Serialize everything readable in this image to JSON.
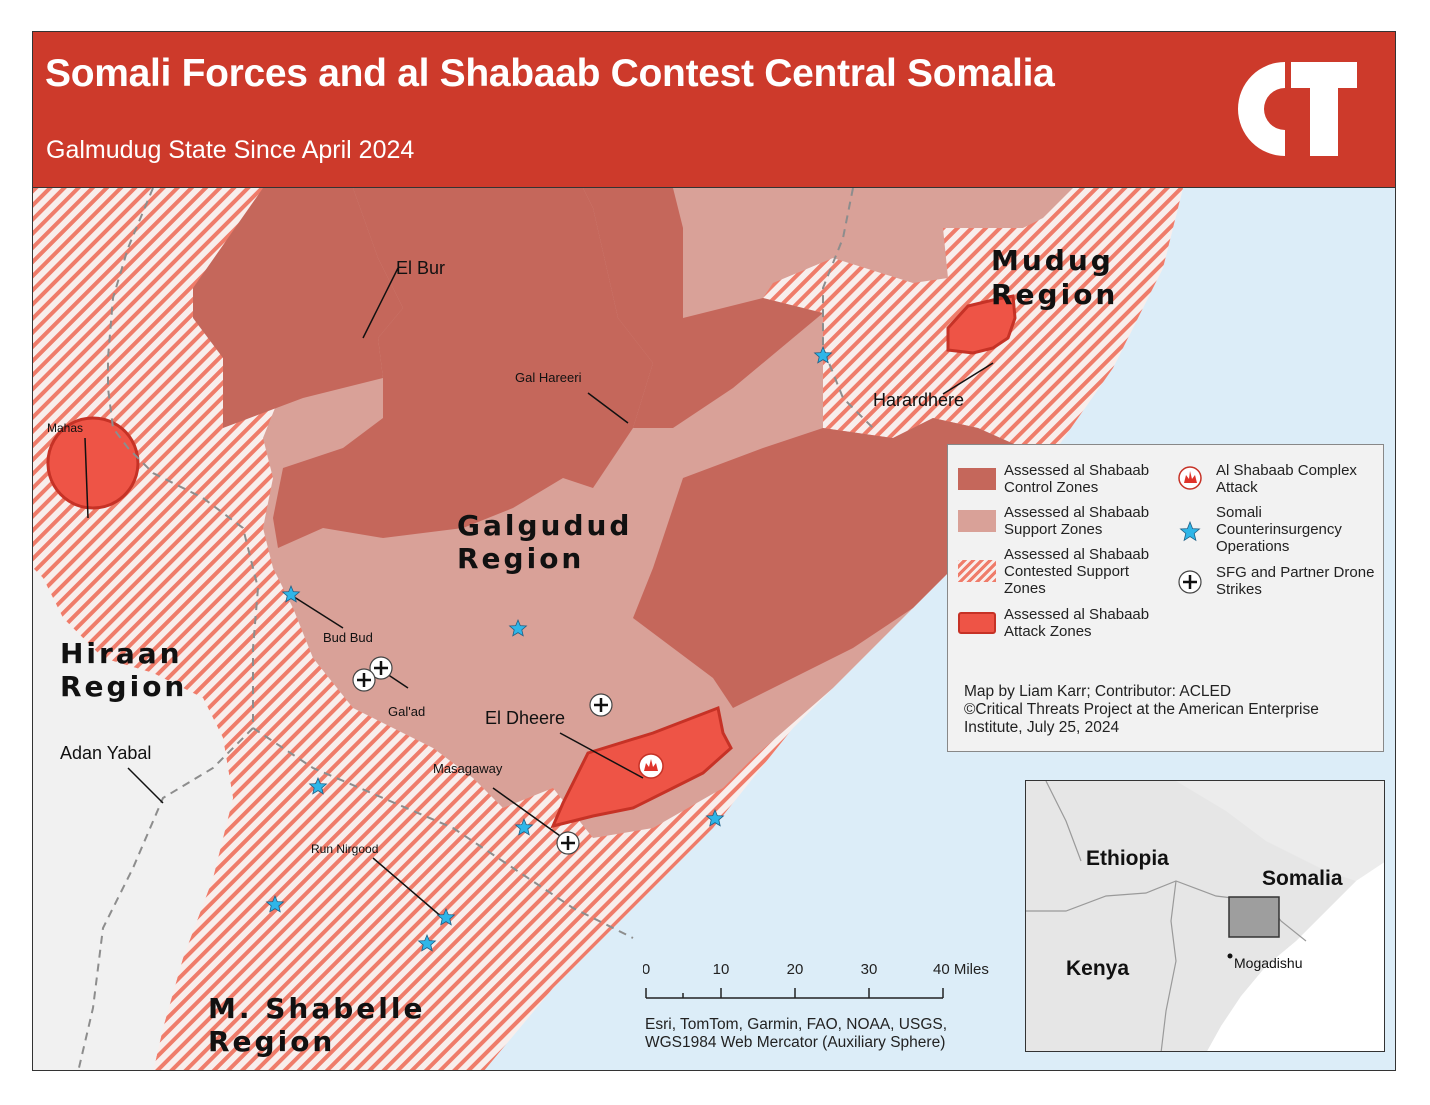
{
  "header": {
    "title": "Somali Forces and al Shabaab Contest Central Somalia",
    "subtitle": "Galmudug State Since April 2024",
    "logo_text": "CT"
  },
  "colors": {
    "header_bg": "#cd3a2b",
    "control": "#c5675b",
    "support": "#d9a198",
    "contested_stripe": "#ef7c6a",
    "attack_fill": "#ee5446",
    "attack_stroke": "#c63226",
    "ocean": "#dcedf8",
    "star": "#2fb6e8"
  },
  "regions": {
    "mudug": [
      "Mudug",
      "Region"
    ],
    "galgudud": [
      "Galgudud",
      "Region"
    ],
    "hiraan": [
      "Hiraan",
      "Region"
    ],
    "shabelle": [
      "M. Shabelle",
      "Region"
    ]
  },
  "places": {
    "el_bur": "El Bur",
    "gal_hareeri": "Gal Hareeri",
    "mahas": "Mahas",
    "harardhere": "Harardhere",
    "bud_bud": "Bud Bud",
    "gal_ad": "Gal'ad",
    "el_dheere": "El Dheere",
    "masagaway": "Masagaway",
    "adan_yabal": "Adan Yabal",
    "run_nirgood": "Run Nirgood"
  },
  "legend": {
    "control": "Assessed al Shabaab Control Zones",
    "support": "Assessed al Shabaab Support Zones",
    "contested": "Assessed al Shabaab Contested Support Zones",
    "attack": "Assessed al Shabaab Attack Zones",
    "complex_attack": "Al Shabaab Complex Attack",
    "coin_ops": "Somali Counterinsurgency Operations",
    "drone": "SFG and Partner Drone Strikes",
    "icons": {
      "complex_attack": "explosion-icon",
      "coin_ops": "star-icon",
      "drone": "plus-marker-icon"
    }
  },
  "credit": {
    "line1": "Map by Liam Karr; Contributor: ACLED",
    "line2": "©Critical Threats Project at the American Enterprise Institute, July 25, 2024"
  },
  "scale": {
    "ticks": [
      "0",
      "10",
      "20",
      "30",
      "40 Miles"
    ]
  },
  "attribution": {
    "line1": "Esri, TomTom, Garmin, FAO, NOAA, USGS,",
    "line2": "WGS1984 Web Mercator (Auxiliary Sphere)"
  },
  "inset": {
    "ethiopia": "Ethiopia",
    "somalia": "Somalia",
    "kenya": "Kenya",
    "mogadishu": "Mogadishu"
  }
}
